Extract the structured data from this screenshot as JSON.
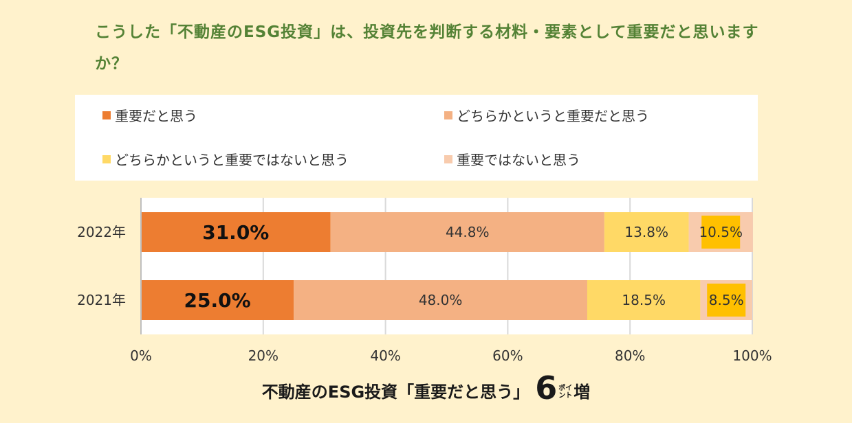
{
  "question": "こうした「不動産のESG投資」は、投資先を判断する材料・要素として重要だと思いますか？",
  "colors": {
    "background": "#fff2cc",
    "question_text": "#548235",
    "important": "#ed7d31",
    "somewhat_important": "#f4b183",
    "somewhat_not_important": "#ffd966",
    "not_important": "#f8cbad",
    "label_box": "#ffc000"
  },
  "chart_data": {
    "type": "bar",
    "orientation": "horizontal",
    "stacked": true,
    "categories": [
      "2022年",
      "2021年"
    ],
    "series": [
      {
        "name": "重要だと思う",
        "values": [
          31.0,
          25.0
        ],
        "labels": [
          "31.0%",
          "25.0%"
        ]
      },
      {
        "name": "どちらかというと重要だと思う",
        "values": [
          44.8,
          48.0
        ],
        "labels": [
          "44.8%",
          "48.0%"
        ]
      },
      {
        "name": "どちらかというと重要ではないと思う",
        "values": [
          13.8,
          18.5
        ],
        "labels": [
          "13.8%",
          "18.5%"
        ]
      },
      {
        "name": "重要ではないと思う",
        "values": [
          10.5,
          8.5
        ],
        "labels": [
          "10.5%",
          "8.5%"
        ]
      }
    ],
    "xlim": [
      0,
      100
    ],
    "xticks": [
      "0%",
      "20%",
      "40%",
      "60%",
      "80%",
      "100%"
    ],
    "grid": true,
    "legend": "top"
  },
  "footer": {
    "lead": "不動産のESG投資「重要だと思う」",
    "number": "6",
    "unit_top": "ポイ",
    "unit_bottom": "ント",
    "tail": "増"
  }
}
